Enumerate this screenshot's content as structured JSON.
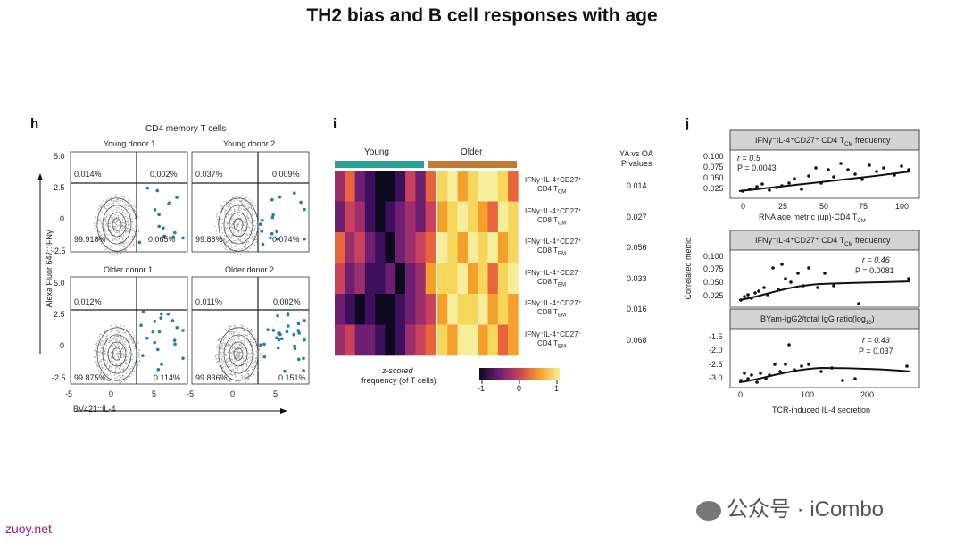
{
  "title": "TH2 bias and B cell responses with age",
  "panel_h": {
    "letter": "h",
    "header": "CD4 memory T cells",
    "y_axis_label": "Alexa Fluor 647::IFNγ",
    "x_axis_label": "BV421::IL-4",
    "y_ticks": [
      "5.0",
      "2.5",
      "0",
      "-2.5"
    ],
    "x_ticks": [
      "-5",
      "0",
      "5"
    ],
    "plots": [
      {
        "name": "Young donor 1",
        "tl": "0.014%",
        "tr": "0.002%",
        "bl": "99.918%",
        "br": "0.065%"
      },
      {
        "name": "Young donor 2",
        "tl": "0.037%",
        "tr": "0.009%",
        "bl": "99.88%",
        "br": "0.074%"
      },
      {
        "name": "Older donor 1",
        "tl": "0.012%",
        "tr": "",
        "bl": "99.875%",
        "br": "0.114%"
      },
      {
        "name": "Older donor 2",
        "tl": "0.011%",
        "tr": "0.002%",
        "bl": "99.836%",
        "br": "0.151%"
      }
    ]
  },
  "panel_i": {
    "letter": "i",
    "group_young": "Young",
    "group_older": "Older",
    "pval_header1": "YA vs OA",
    "pval_header2": "P values",
    "rows": [
      {
        "l1": "IFNγ⁻IL-4⁺CD27⁺",
        "l2": "CD4 T",
        "sub": "CM",
        "p": "0.014"
      },
      {
        "l1": "IFNγ⁻IL-4⁺CD27⁺",
        "l2": "CD8 T",
        "sub": "CM",
        "p": "0.027"
      },
      {
        "l1": "IFNγ⁻IL-4⁺CD27⁺",
        "l2": "CD8 T",
        "sub": "EM",
        "p": "0.056"
      },
      {
        "l1": "IFNγ⁻IL-4⁺CD27⁻",
        "l2": "CD8 T",
        "sub": "EM",
        "p": "0.033"
      },
      {
        "l1": "IFNγ⁻IL-4⁺CD27⁺",
        "l2": "CD8 T",
        "sub": "EM",
        "p": "0.016"
      },
      {
        "l1": "IFNγ⁻IL-4⁺CD27⁻",
        "l2": "CD4 T",
        "sub": "EM",
        "p": "0.068"
      }
    ],
    "legend_label1": "z-scored",
    "legend_label2": "frequency (of T cells)",
    "legend_ticks": [
      "-1",
      "0",
      "1"
    ],
    "heat_colors": [
      "#0d0a1e",
      "#3d0f5c",
      "#6e1f72",
      "#9c2e6c",
      "#c9415a",
      "#e8653b",
      "#f5a02a",
      "#f7d65c",
      "#f6ee9a"
    ],
    "matrix": [
      [
        3,
        5,
        2,
        1,
        0,
        0,
        1,
        4,
        2,
        5,
        7,
        8,
        6,
        7,
        8,
        8,
        7,
        5
      ],
      [
        2,
        4,
        3,
        1,
        0,
        1,
        2,
        3,
        2,
        4,
        6,
        7,
        8,
        7,
        6,
        5,
        8,
        7
      ],
      [
        5,
        3,
        4,
        2,
        1,
        0,
        2,
        3,
        4,
        5,
        8,
        7,
        6,
        8,
        7,
        8,
        6,
        7
      ],
      [
        4,
        2,
        3,
        1,
        1,
        2,
        0,
        2,
        3,
        6,
        7,
        7,
        8,
        6,
        7,
        5,
        7,
        8
      ],
      [
        2,
        1,
        0,
        1,
        0,
        0,
        1,
        2,
        3,
        4,
        6,
        8,
        7,
        7,
        8,
        6,
        7,
        6
      ],
      [
        3,
        4,
        2,
        2,
        1,
        0,
        1,
        3,
        4,
        5,
        7,
        6,
        8,
        8,
        6,
        7,
        5,
        6
      ]
    ]
  },
  "panel_j": {
    "letter": "j",
    "y_axis_label": "Correlated metric",
    "x_axis_label": "TCR-induced IL-4 secretion",
    "subplots": [
      {
        "title_main": "IFNγ⁻IL-4⁺CD27⁺ CD4 T",
        "title_sub": "CM",
        "title_tail": " frequency",
        "stat_r": "r = 0.5",
        "stat_p": "P = 0.0043",
        "y_ticks": [
          "0.100",
          "0.075",
          "0.050",
          "0.025"
        ],
        "x_ticks": [
          "0",
          "25",
          "50",
          "75",
          "100"
        ],
        "x_title": "RNA age metric (up)-CD4 T",
        "x_title_sub": "CM"
      },
      {
        "title_main": "IFNγ⁻IL-4⁺CD27⁺ CD4 T",
        "title_sub": "CM",
        "title_tail": " frequency",
        "stat_r": "r = 0.46",
        "stat_p": "P = 0.0081",
        "y_ticks": [
          "0.100",
          "0.075",
          "0.050",
          "0.025"
        ]
      },
      {
        "title_main": "BYam-IgG2/total IgG ratio(log",
        "title_sub": "10",
        "title_tail": ")",
        "stat_r": "r = 0.43",
        "stat_p": "P = 0.037",
        "y_ticks": [
          "-1.5",
          "-2.0",
          "-2.5",
          "-3.0"
        ],
        "x_ticks": [
          "0",
          "100",
          "200"
        ]
      }
    ]
  },
  "watermark": "公众号 · iCombo",
  "source": "zuoy.net"
}
